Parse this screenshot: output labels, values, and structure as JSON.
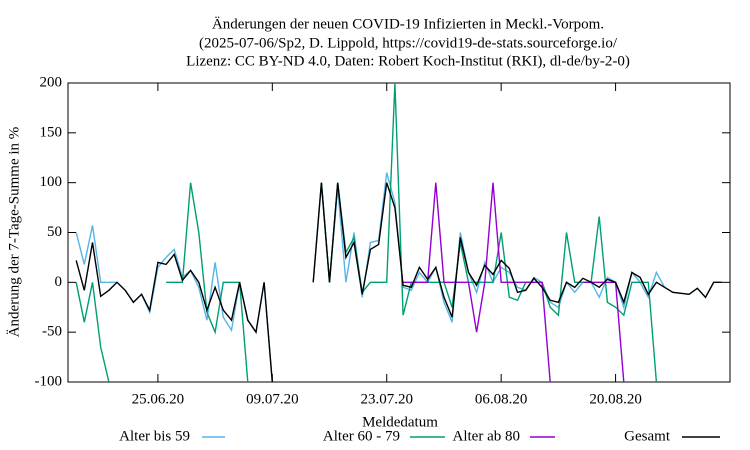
{
  "chart_data": {
    "type": "line",
    "title": "Änderungen der neuen COVID-19 Infizierten in Meckl.-Vorpom.",
    "subtitle": [
      "(2025-07-06/Sp2, D. Lippold, https://covid19-de-stats.sourceforge.io/",
      "Lizenz: CC BY-ND 4.0, Daten: Robert Koch-Institut (RKI), dl-de/by-2-0)"
    ],
    "x_label": "Meldedatum",
    "y_label": "Änderung der 7-Tage-Summe in %",
    "x": [
      "15.06.20",
      "16.06.20",
      "17.06.20",
      "18.06.20",
      "19.06.20",
      "20.06.20",
      "21.06.20",
      "22.06.20",
      "23.06.20",
      "24.06.20",
      "25.06.20",
      "26.06.20",
      "27.06.20",
      "28.06.20",
      "29.06.20",
      "30.06.20",
      "01.07.20",
      "02.07.20",
      "03.07.20",
      "04.07.20",
      "05.07.20",
      "06.07.20",
      "07.07.20",
      "08.07.20",
      "09.07.20",
      "10.07.20",
      "11.07.20",
      "12.07.20",
      "13.07.20",
      "14.07.20",
      "15.07.20",
      "16.07.20",
      "17.07.20",
      "18.07.20",
      "19.07.20",
      "20.07.20",
      "21.07.20",
      "22.07.20",
      "23.07.20",
      "24.07.20",
      "25.07.20",
      "26.07.20",
      "27.07.20",
      "28.07.20",
      "29.07.20",
      "30.07.20",
      "31.07.20",
      "01.08.20",
      "02.08.20",
      "03.08.20",
      "04.08.20",
      "05.08.20",
      "06.08.20",
      "07.08.20",
      "08.08.20",
      "09.08.20",
      "10.08.20",
      "11.08.20",
      "12.08.20",
      "13.08.20",
      "14.08.20",
      "15.08.20",
      "16.08.20",
      "17.08.20",
      "18.08.20",
      "19.08.20",
      "20.08.20",
      "21.08.20",
      "22.08.20",
      "23.08.20",
      "24.08.20",
      "25.08.20",
      "26.08.20",
      "27.08.20",
      "28.08.20",
      "29.08.20",
      "30.08.20",
      "31.08.20",
      "01.09.20",
      "02.09.20"
    ],
    "series": [
      {
        "name": "Alter bis 59",
        "color": "#56b4e9",
        "values": [
          50,
          18,
          57,
          0,
          0,
          0,
          -8,
          -20,
          -12,
          -30,
          15,
          25,
          33,
          5,
          12,
          -5,
          -38,
          20,
          -35,
          -48,
          0,
          -38,
          -50,
          0,
          -100,
          null,
          null,
          null,
          null,
          0,
          100,
          0,
          95,
          0,
          50,
          -15,
          40,
          42,
          110,
          80,
          -5,
          -8,
          10,
          0,
          15,
          -20,
          -40,
          50,
          10,
          -10,
          20,
          0,
          15,
          10,
          -5,
          -8,
          5,
          0,
          -20,
          -25,
          0,
          -10,
          0,
          0,
          -15,
          5,
          0,
          -25,
          10,
          0,
          -15,
          10,
          -5,
          -10,
          -11,
          -12,
          -6,
          -15,
          0,
          0
        ]
      },
      {
        "name": "Alter 60 - 79",
        "color": "#009e73",
        "values": [
          0,
          -40,
          0,
          -65,
          -100,
          null,
          null,
          null,
          null,
          null,
          null,
          0,
          0,
          0,
          100,
          50,
          -30,
          -50,
          0,
          0,
          0,
          -100,
          null,
          null,
          null,
          null,
          null,
          null,
          null,
          null,
          100,
          0,
          100,
          30,
          45,
          -10,
          0,
          0,
          0,
          200,
          -33,
          0,
          0,
          0,
          0,
          0,
          -25,
          40,
          0,
          0,
          0,
          0,
          50,
          -15,
          -18,
          0,
          0,
          0,
          -25,
          -33,
          50,
          0,
          0,
          0,
          66,
          -20,
          -25,
          -33,
          0,
          0,
          0,
          -100,
          null,
          null,
          null,
          null,
          null,
          null,
          null,
          null
        ]
      },
      {
        "name": "Alter ab 80",
        "color": "#9400d3",
        "values": [
          null,
          null,
          null,
          null,
          null,
          null,
          null,
          null,
          null,
          null,
          null,
          null,
          null,
          null,
          null,
          null,
          null,
          null,
          null,
          null,
          null,
          null,
          null,
          null,
          null,
          null,
          null,
          null,
          null,
          null,
          null,
          null,
          null,
          null,
          null,
          null,
          null,
          null,
          null,
          null,
          0,
          0,
          0,
          0,
          100,
          0,
          0,
          0,
          0,
          -50,
          0,
          100,
          0,
          0,
          0,
          0,
          0,
          0,
          -100,
          null,
          null,
          null,
          0,
          0,
          0,
          0,
          0,
          -100,
          null,
          null,
          null,
          null,
          null,
          null,
          null,
          null,
          null,
          null,
          null,
          null
        ]
      },
      {
        "name": "Gesamt",
        "color": "#000000",
        "values": [
          22,
          -8,
          40,
          -14,
          -8,
          0,
          -8,
          -20,
          -12,
          -28,
          20,
          18,
          28,
          2,
          12,
          0,
          -28,
          -5,
          -28,
          -38,
          0,
          -38,
          -50,
          0,
          -100,
          null,
          null,
          null,
          null,
          0,
          100,
          0,
          100,
          25,
          40,
          -12,
          33,
          38,
          100,
          75,
          -3,
          -5,
          15,
          3,
          15,
          -15,
          -35,
          45,
          10,
          -3,
          17,
          8,
          22,
          14,
          -10,
          -8,
          4,
          -5,
          -18,
          -20,
          0,
          -5,
          4,
          0,
          -5,
          3,
          0,
          -20,
          10,
          5,
          -12,
          0,
          -5,
          -10,
          -11,
          -12,
          -6,
          -15,
          0,
          0
        ]
      }
    ],
    "xlim": [
      "14.06.20",
      "03.09.20"
    ],
    "xticks": [
      "25.06.20",
      "09.07.20",
      "23.07.20",
      "06.08.20",
      "20.08.20"
    ],
    "ylim": [
      -100,
      200
    ],
    "yticks": [
      -100,
      -50,
      0,
      50,
      100,
      150,
      200
    ]
  }
}
